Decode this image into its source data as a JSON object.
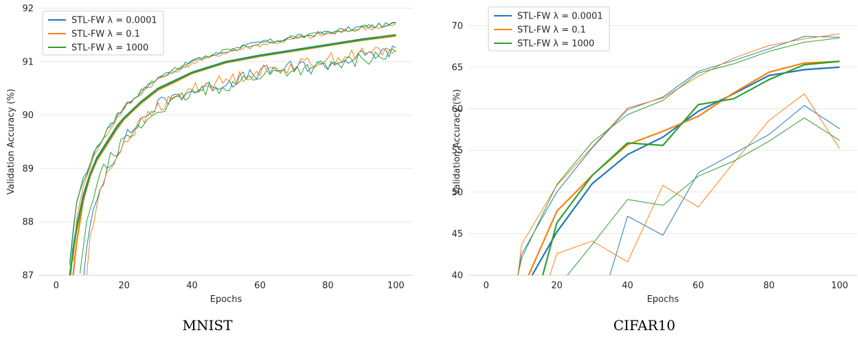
{
  "colors": {
    "blue": "#1f77b4",
    "orange": "#ff7f0e",
    "green": "#2ca02c",
    "grid": "#e6e6e6"
  },
  "legend_labels": [
    "STL-FW λ = 0.0001",
    "STL-FW λ = 0.1",
    "STL-FW λ = 1000"
  ],
  "captions": {
    "mnist": "MNIST",
    "cifar": "CIFAR10"
  },
  "chart_data": [
    {
      "type": "line",
      "name": "MNIST",
      "xlabel": "Epochs",
      "ylabel": "Validation Accuracy (%)",
      "xlim": [
        -5,
        105
      ],
      "ylim": [
        87,
        92
      ],
      "xticks": [
        0,
        20,
        40,
        60,
        80,
        100
      ],
      "yticks": [
        87,
        88,
        89,
        90,
        91,
        92
      ],
      "grid": "horizontal",
      "legend": "top-left",
      "noisy_lower": true,
      "series": [
        {
          "name": "STL-FW λ = 0.0001",
          "color": "blue",
          "mean": {
            "x": [
              4,
              5,
              6,
              8,
              10,
              12,
              15,
              18,
              20,
              25,
              30,
              35,
              40,
              50,
              60,
              70,
              80,
              90,
              100
            ],
            "y": [
              86.9,
              87.5,
              87.9,
              88.5,
              88.9,
              89.2,
              89.5,
              89.8,
              89.95,
              90.25,
              90.5,
              90.65,
              90.8,
              91.0,
              91.12,
              91.22,
              91.32,
              91.42,
              91.5
            ]
          },
          "upper": {
            "x": [
              4,
              5,
              6,
              8,
              10,
              12,
              15,
              18,
              20,
              25,
              30,
              35,
              40,
              50,
              60,
              70,
              80,
              90,
              100
            ],
            "y": [
              87.2,
              87.8,
              88.4,
              88.8,
              89.1,
              89.4,
              89.7,
              90.0,
              90.15,
              90.45,
              90.7,
              90.85,
              91.0,
              91.2,
              91.35,
              91.45,
              91.55,
              91.65,
              91.7
            ]
          },
          "lower": {
            "x": [
              8,
              10,
              12,
              15,
              18,
              20,
              25,
              30,
              35,
              40,
              50,
              60,
              70,
              80,
              90,
              100
            ],
            "y": [
              87.0,
              87.9,
              88.4,
              89.0,
              89.3,
              89.55,
              89.9,
              90.2,
              90.35,
              90.45,
              90.6,
              90.8,
              90.9,
              90.95,
              91.1,
              91.2
            ]
          }
        },
        {
          "name": "STL-FW λ = 0.1",
          "color": "orange",
          "mean": {
            "x": [
              5,
              6,
              8,
              10,
              12,
              15,
              18,
              20,
              25,
              30,
              35,
              40,
              50,
              60,
              70,
              80,
              90,
              100
            ],
            "y": [
              87.0,
              87.6,
              88.4,
              88.85,
              89.15,
              89.45,
              89.75,
              89.92,
              90.22,
              90.47,
              90.62,
              90.78,
              90.98,
              91.1,
              91.2,
              91.3,
              91.4,
              91.48
            ]
          },
          "upper": {
            "x": [
              5,
              6,
              8,
              10,
              12,
              15,
              18,
              20,
              25,
              30,
              35,
              40,
              50,
              60,
              70,
              80,
              90,
              100
            ],
            "y": [
              87.3,
              88.0,
              88.7,
              89.05,
              89.35,
              89.65,
              89.95,
              90.12,
              90.42,
              90.67,
              90.82,
              90.98,
              91.18,
              91.32,
              91.42,
              91.52,
              91.62,
              91.68
            ]
          },
          "lower": {
            "x": [
              9,
              10,
              12,
              15,
              18,
              20,
              25,
              30,
              35,
              40,
              50,
              60,
              70,
              80,
              90,
              100
            ],
            "y": [
              87.0,
              87.7,
              88.3,
              88.95,
              89.25,
              89.5,
              89.85,
              90.15,
              90.3,
              90.5,
              90.65,
              90.82,
              90.92,
              91.05,
              91.15,
              91.25
            ]
          }
        },
        {
          "name": "STL-FW λ = 1000",
          "color": "green",
          "mean": {
            "x": [
              4,
              5,
              6,
              8,
              10,
              12,
              15,
              18,
              20,
              25,
              30,
              35,
              40,
              50,
              60,
              70,
              80,
              90,
              100
            ],
            "y": [
              87.0,
              87.45,
              87.85,
              88.45,
              88.88,
              89.18,
              89.48,
              89.78,
              89.94,
              90.24,
              90.49,
              90.64,
              90.79,
              90.99,
              91.11,
              91.21,
              91.31,
              91.41,
              91.5
            ]
          },
          "upper": {
            "x": [
              4,
              5,
              6,
              8,
              10,
              12,
              15,
              18,
              20,
              25,
              30,
              35,
              40,
              50,
              60,
              70,
              80,
              90,
              100
            ],
            "y": [
              87.2,
              87.75,
              88.35,
              88.75,
              89.1,
              89.4,
              89.7,
              90.0,
              90.15,
              90.45,
              90.7,
              90.85,
              91.0,
              91.2,
              91.35,
              91.45,
              91.55,
              91.65,
              91.7
            ]
          },
          "lower": {
            "x": [
              7,
              8,
              10,
              12,
              15,
              18,
              20,
              25,
              30,
              35,
              40,
              50,
              60,
              70,
              80,
              90,
              100
            ],
            "y": [
              87.0,
              87.5,
              88.3,
              88.7,
              89.1,
              89.35,
              89.5,
              89.8,
              90.1,
              90.25,
              90.4,
              90.55,
              90.75,
              90.85,
              90.9,
              91.05,
              91.15
            ]
          }
        }
      ]
    },
    {
      "type": "line",
      "name": "CIFAR10",
      "xlabel": "Epochs",
      "ylabel": "Validation Accuracy (%)",
      "xlim": [
        -5,
        105
      ],
      "ylim": [
        40,
        72
      ],
      "xticks": [
        0,
        20,
        40,
        60,
        80,
        100
      ],
      "yticks": [
        40,
        45,
        50,
        55,
        60,
        65,
        70
      ],
      "grid": "horizontal",
      "legend": "top-left",
      "noisy_lower": false,
      "series": [
        {
          "name": "STL-FW λ = 0.0001",
          "color": "blue",
          "mean": {
            "x": [
              13,
              20,
              30,
              40,
              50,
              60,
              70,
              80,
              90,
              100
            ],
            "y": [
              40,
              45.2,
              51.0,
              54.5,
              56.6,
              59.7,
              61.8,
              64.0,
              64.7,
              65.0
            ]
          },
          "upper": {
            "x": [
              9,
              10,
              20,
              30,
              40,
              50,
              60,
              70,
              80,
              90,
              100
            ],
            "y": [
              40,
              42.5,
              50.0,
              55.3,
              59.9,
              61.4,
              64.5,
              65.8,
              67.2,
              68.7,
              68.6
            ]
          },
          "lower": {
            "x": [
              35,
              40,
              50,
              60,
              70,
              80,
              90,
              100
            ],
            "y": [
              40,
              47.1,
              44.8,
              52.3,
              54.6,
              56.9,
              60.4,
              57.6
            ]
          }
        },
        {
          "name": "STL-FW λ = 0.1",
          "color": "orange",
          "mean": {
            "x": [
              12,
              20,
              30,
              40,
              50,
              60,
              70,
              80,
              90,
              100
            ],
            "y": [
              40,
              47.7,
              52.0,
              55.7,
              57.3,
              59.1,
              61.9,
              64.4,
              65.5,
              65.7
            ]
          },
          "upper": {
            "x": [
              9,
              10,
              20,
              30,
              40,
              50,
              60,
              70,
              80,
              90,
              100
            ],
            "y": [
              40,
              43.7,
              50.8,
              55.4,
              60.1,
              61.3,
              63.9,
              66.1,
              67.6,
              68.4,
              69.0
            ]
          },
          "lower": {
            "x": [
              18,
              20,
              30,
              40,
              50,
              60,
              70,
              80,
              90,
              100
            ],
            "y": [
              40,
              42.6,
              44.1,
              41.6,
              50.8,
              48.2,
              53.5,
              58.6,
              61.8,
              55.2
            ]
          }
        },
        {
          "name": "STL-FW λ = 1000",
          "color": "green",
          "mean": {
            "x": [
              16,
              20,
              30,
              40,
              50,
              60,
              70,
              80,
              90,
              100
            ],
            "y": [
              40,
              46.3,
              52.0,
              55.9,
              55.6,
              60.5,
              61.2,
              63.5,
              65.3,
              65.7
            ]
          },
          "upper": {
            "x": [
              9,
              10,
              20,
              30,
              40,
              50,
              60,
              70,
              80,
              90,
              100
            ],
            "y": [
              40,
              42.0,
              50.9,
              56.0,
              59.3,
              61.0,
              64.3,
              65.4,
              66.9,
              68.0,
              68.5
            ]
          },
          "lower": {
            "x": [
              23,
              30,
              40,
              50,
              60,
              70,
              80,
              90,
              100
            ],
            "y": [
              40,
              43.7,
              49.1,
              48.4,
              51.9,
              53.7,
              56.1,
              58.9,
              56.2
            ]
          }
        }
      ]
    }
  ]
}
